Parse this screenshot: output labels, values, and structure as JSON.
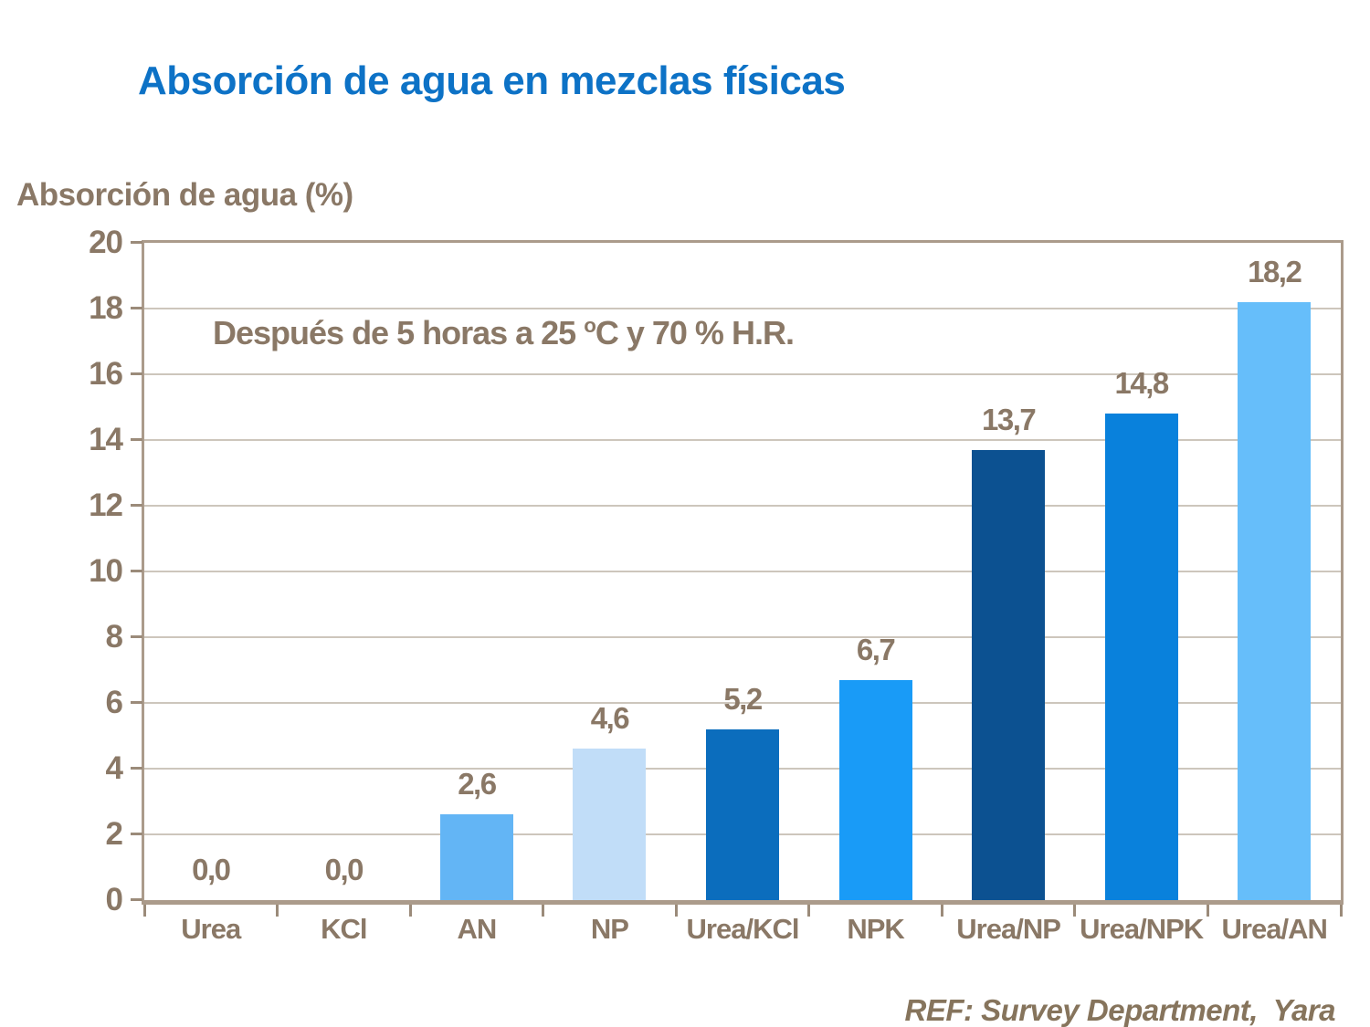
{
  "slide": {
    "title": "Absorción de agua en mezclas físicas",
    "y_axis_title": "Absorción de agua (%)",
    "annotation": {
      "pre": "Después de 5 horas a 25 ",
      "sup": "o",
      "post": "C y 70 % H.R."
    },
    "footer_ref": "REF: Survey Department,  Yara"
  },
  "colors": {
    "title_blue": "#0D72C6",
    "label_brown": "#8A7866",
    "footer_brown": "#86745C",
    "plot_border": "#AB9B8B",
    "gridline": "#CDC6BC",
    "tick_mark": "#9B8B7A"
  },
  "chart_data": {
    "type": "bar",
    "title": "Absorción de agua en mezclas físicas",
    "ylabel": "Absorción de agua (%)",
    "annotation": "Después de 5 horas a 25 ºC y 70 % H.R.",
    "categories": [
      "Urea",
      "KCl",
      "AN",
      "NP",
      "Urea/KCl",
      "NPK",
      "Urea/NP",
      "Urea/NPK",
      "Urea/AN"
    ],
    "values": [
      0.0,
      0.0,
      2.6,
      4.6,
      5.2,
      6.7,
      13.7,
      14.8,
      18.2
    ],
    "value_labels": [
      "0,0",
      "0,0",
      "2,6",
      "4,6",
      "5,2",
      "6,7",
      "13,7",
      "14,8",
      "18,2"
    ],
    "bar_colors": [
      null,
      null,
      "#63B5F5",
      "#C1DDF8",
      "#0B6DBD",
      "#199BF7",
      "#0C5191",
      "#0981DC",
      "#66BEFA"
    ],
    "ylim": [
      0,
      20
    ],
    "ytick_step": 2,
    "grid": true,
    "legend": "none",
    "ref": "REF: Survey Department,  Yara"
  }
}
